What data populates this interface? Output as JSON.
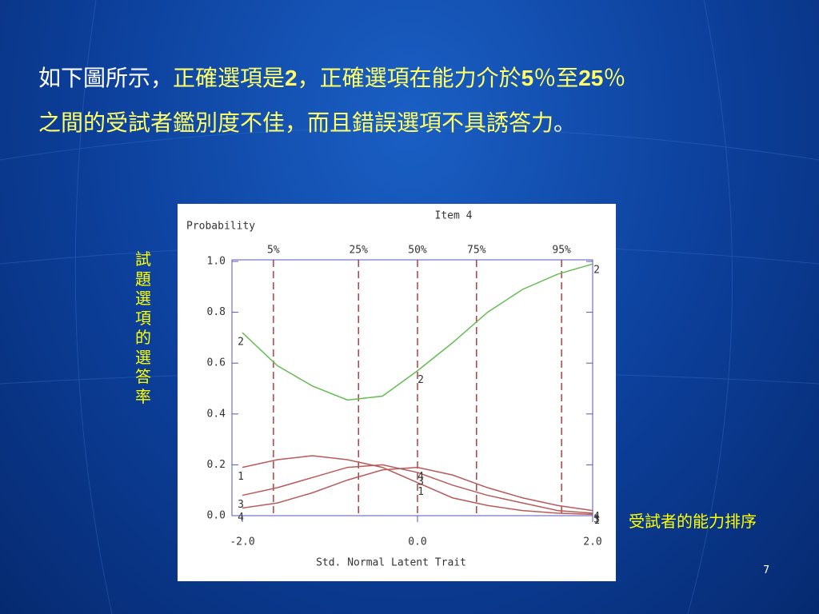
{
  "slide": {
    "heading": {
      "line1": [
        "如下圖所示，",
        "正確選項是",
        "2",
        "，正確選項在能力介於",
        "5",
        "％至",
        "25",
        "％"
      ],
      "line2": [
        "之間的受試者鑑別度不佳，而且錯誤選項不具誘答力",
        "。"
      ]
    },
    "side_label": "試題選項的選答率",
    "bottom_label": "受試者的能力排序",
    "page_number": "7"
  },
  "chart_data": {
    "type": "line",
    "title": "Item 4",
    "y_label": "Probability",
    "x_label": "Std. Normal Latent Trait",
    "x": [
      -2.0,
      -1.6,
      -1.2,
      -0.8,
      -0.4,
      0.0,
      0.4,
      0.8,
      1.2,
      1.6,
      2.0
    ],
    "series": [
      {
        "name": "2",
        "color": "#66bb55",
        "values": [
          0.72,
          0.59,
          0.51,
          0.455,
          0.47,
          0.57,
          0.68,
          0.8,
          0.89,
          0.95,
          0.99
        ]
      },
      {
        "name": "1",
        "color": "#b85a5a",
        "values": [
          0.19,
          0.22,
          0.236,
          0.22,
          0.19,
          0.13,
          0.07,
          0.04,
          0.02,
          0.01,
          0.005
        ]
      },
      {
        "name": "3",
        "color": "#b85a5a",
        "values": [
          0.08,
          0.11,
          0.15,
          0.19,
          0.2,
          0.17,
          0.12,
          0.08,
          0.05,
          0.02,
          0.01
        ]
      },
      {
        "name": "4",
        "color": "#b85a5a",
        "values": [
          0.03,
          0.05,
          0.09,
          0.14,
          0.18,
          0.19,
          0.16,
          0.11,
          0.07,
          0.04,
          0.02
        ]
      }
    ],
    "percentiles": [
      {
        "value": -1.645,
        "label": "5%"
      },
      {
        "value": -0.674,
        "label": "25%"
      },
      {
        "value": 0,
        "label": "50%"
      },
      {
        "value": 0.674,
        "label": "75%"
      },
      {
        "value": 1.645,
        "label": "95%"
      }
    ],
    "xlim": [
      -2.0,
      2.0
    ],
    "ylim": [
      0,
      1
    ],
    "xticks": [
      {
        "value": -2,
        "label": "-2.0"
      },
      {
        "value": 0,
        "label": "0.0"
      },
      {
        "value": 2,
        "label": "2.0"
      }
    ],
    "yticks": [
      {
        "value": 0,
        "label": "0.0"
      },
      0.2,
      0.4,
      0.6,
      0.8,
      {
        "value": 1,
        "label": "1.0"
      }
    ]
  }
}
